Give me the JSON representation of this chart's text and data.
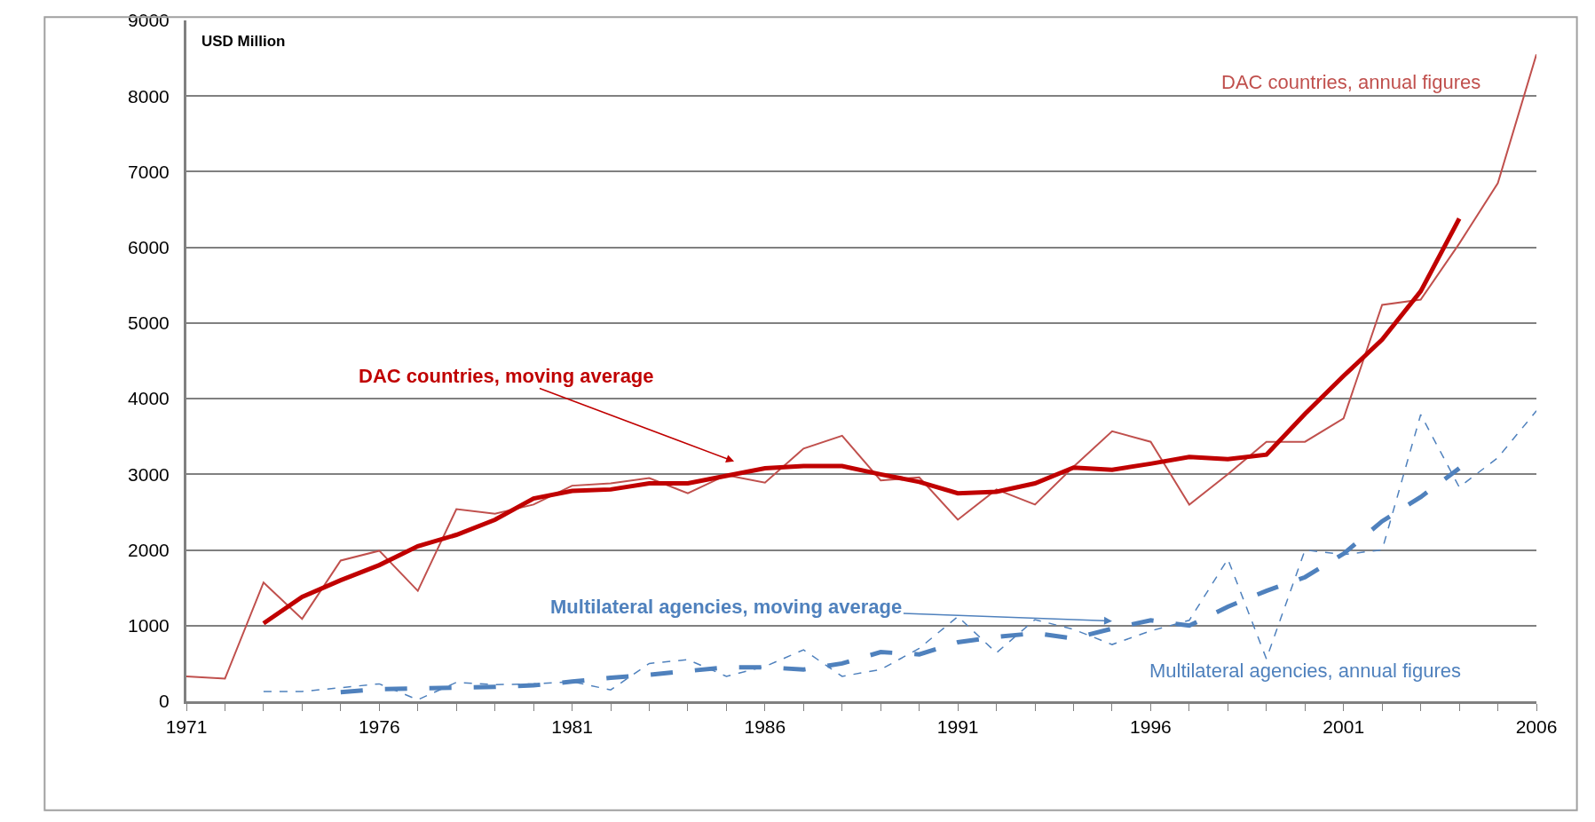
{
  "chart_data": {
    "type": "line",
    "ylabel": "USD Million",
    "xlim": [
      1971,
      2006
    ],
    "xticks": [
      1971,
      1976,
      1981,
      1986,
      1991,
      1996,
      2001,
      2006
    ],
    "ylim": [
      0,
      9000
    ],
    "yticks": [
      0,
      1000,
      2000,
      3000,
      4000,
      5000,
      6000,
      7000,
      8000,
      9000
    ],
    "grid": "y",
    "series": [
      {
        "name": "DAC countries, annual figures",
        "color": "#c0504d",
        "line_style": "solid",
        "x": [
          1971,
          1972,
          1973,
          1974,
          1975,
          1976,
          1977,
          1978,
          1979,
          1980,
          1981,
          1982,
          1983,
          1984,
          1985,
          1986,
          1987,
          1988,
          1989,
          1990,
          1991,
          1992,
          1993,
          1994,
          1995,
          1996,
          1997,
          1998,
          1999,
          2000,
          2001,
          2002,
          2003,
          2004,
          2005,
          2006
        ],
        "values": [
          330,
          300,
          1570,
          1090,
          1860,
          1990,
          1460,
          2540,
          2480,
          2600,
          2850,
          2880,
          2950,
          2750,
          2990,
          2890,
          3340,
          3510,
          2920,
          2960,
          2400,
          2800,
          2600,
          3100,
          3570,
          3430,
          2600,
          3000,
          3430,
          3430,
          3740,
          5240,
          5310,
          6050,
          6850,
          8550
        ]
      },
      {
        "name": "DAC countries, moving average",
        "color": "#c00000",
        "line_style": "solid",
        "x": [
          1973,
          1974,
          1975,
          1976,
          1977,
          1978,
          1979,
          1980,
          1981,
          1982,
          1983,
          1984,
          1985,
          1986,
          1987,
          1988,
          1989,
          1990,
          1991,
          1992,
          1993,
          1994,
          1995,
          1996,
          1997,
          1998,
          1999,
          2000,
          2001,
          2002,
          2003,
          2004
        ],
        "values": [
          1030,
          1380,
          1600,
          1800,
          2050,
          2200,
          2400,
          2680,
          2780,
          2800,
          2880,
          2880,
          2980,
          3080,
          3110,
          3110,
          3000,
          2900,
          2750,
          2770,
          2880,
          3090,
          3060,
          3140,
          3230,
          3200,
          3260,
          3800,
          4300,
          4780,
          5420,
          6380
        ]
      },
      {
        "name": "Multilateral agencies, annual figures",
        "color": "#4f81bd",
        "line_style": "dashed",
        "x": [
          1973,
          1974,
          1975,
          1976,
          1977,
          1978,
          1979,
          1980,
          1981,
          1982,
          1983,
          1984,
          1985,
          1986,
          1987,
          1988,
          1989,
          1990,
          1991,
          1992,
          1993,
          1994,
          1995,
          1996,
          1997,
          1998,
          1999,
          2000,
          2001,
          2002,
          2003,
          2004,
          2005,
          2006
        ],
        "values": [
          130,
          130,
          180,
          230,
          20,
          250,
          220,
          230,
          260,
          150,
          500,
          550,
          330,
          460,
          680,
          330,
          420,
          700,
          1120,
          640,
          1080,
          950,
          750,
          930,
          1070,
          1880,
          560,
          2000,
          1940,
          2000,
          3790,
          2830,
          3220,
          3840
        ]
      },
      {
        "name": "Multilateral agencies, moving average",
        "color": "#4f81bd",
        "line_style": "dashed",
        "x": [
          1975,
          1976,
          1977,
          1978,
          1979,
          1980,
          1981,
          1982,
          1983,
          1984,
          1985,
          1986,
          1987,
          1988,
          1989,
          1990,
          1991,
          1992,
          1993,
          1994,
          1995,
          1996,
          1997,
          1998,
          1999,
          2000,
          2001,
          2002,
          2003,
          2004
        ],
        "values": [
          120,
          160,
          170,
          180,
          190,
          210,
          260,
          310,
          350,
          400,
          450,
          450,
          420,
          500,
          650,
          620,
          780,
          850,
          900,
          830,
          960,
          1070,
          1000,
          1250,
          1460,
          1640,
          1950,
          2380,
          2700,
          3080
        ]
      }
    ]
  }
}
